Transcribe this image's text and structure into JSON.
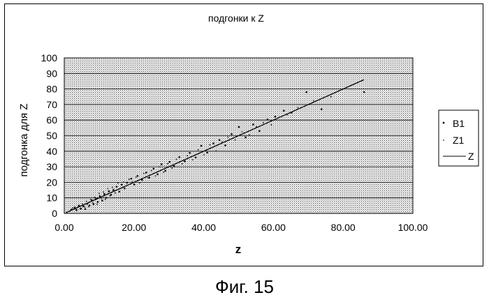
{
  "figure_caption": "Фиг. 15",
  "chart_data": {
    "type": "scatter",
    "title": "подгонки к Z",
    "xlabel": "z",
    "ylabel": "подгонка для Z",
    "xlim": [
      0,
      100
    ],
    "ylim": [
      0,
      100
    ],
    "x_ticks": [
      "0.00",
      "20.00",
      "40.00",
      "60.00",
      "80.00",
      "100.00"
    ],
    "y_ticks": [
      "0",
      "10",
      "20",
      "30",
      "40",
      "50",
      "60",
      "70",
      "80",
      "90",
      "100"
    ],
    "grid": true,
    "legend_position": "right",
    "legend": [
      "B1",
      "Z1",
      "Z"
    ],
    "colors": {
      "plot_background": "#c8c8c8",
      "points": "#000000",
      "line": "#000000"
    },
    "series": [
      {
        "name": "B1",
        "type": "scatter",
        "x": [
          2.1,
          3.0,
          3.5,
          4.2,
          4.8,
          5.5,
          6.0,
          6.6,
          7.2,
          7.9,
          8.4,
          9.0,
          9.6,
          10.2,
          10.9,
          11.5,
          12.0,
          12.8,
          13.4,
          14.1,
          15.0,
          15.8,
          16.5,
          17.3,
          18.0,
          19.2,
          20.1,
          21.0,
          22.3,
          23.5,
          24.4,
          25.6,
          26.8,
          27.9,
          29.0,
          30.2,
          31.5,
          33.0,
          34.6,
          36.0,
          37.7,
          39.3,
          41.0,
          42.8,
          44.5,
          46.2,
          48.0,
          50.1,
          52.0,
          54.2,
          56.0,
          58.3,
          60.5,
          63.0,
          65.2,
          69.5,
          73.8,
          86.0
        ],
        "values": [
          2.5,
          3.8,
          2.2,
          5.0,
          3.1,
          4.6,
          2.8,
          6.2,
          5.1,
          8.5,
          6.0,
          9.2,
          7.4,
          11.0,
          8.3,
          12.5,
          10.1,
          14.2,
          12.0,
          15.1,
          17.2,
          14.0,
          18.5,
          16.1,
          19.8,
          22.4,
          18.6,
          24.1,
          21.5,
          26.3,
          23.0,
          28.8,
          25.2,
          31.6,
          27.4,
          33.1,
          30.4,
          36.2,
          33.5,
          38.9,
          36.0,
          43.5,
          39.1,
          45.0,
          47.2,
          43.8,
          51.0,
          55.6,
          48.9,
          57.2,
          53.0,
          60.4,
          62.2,
          66.0,
          64.8,
          78.0,
          67.0,
          78.0
        ]
      },
      {
        "name": "Z1",
        "type": "scatter",
        "x": [
          2.4,
          3.3,
          4.0,
          4.5,
          5.2,
          5.9,
          6.4,
          7.0,
          7.6,
          8.2,
          8.8,
          9.4,
          10.0,
          10.6,
          11.2,
          11.8,
          12.5,
          13.1,
          13.8,
          14.6,
          15.4,
          16.2,
          17.0,
          17.7,
          18.6,
          19.5,
          20.6,
          21.6,
          22.8,
          24.0,
          25.0,
          26.2,
          27.3,
          28.5,
          29.7,
          30.9,
          32.2,
          33.8,
          35.3,
          36.8,
          38.4,
          40.1,
          41.8,
          43.6,
          45.3,
          47.0,
          49.0,
          51.0,
          53.1,
          55.1,
          57.1,
          59.4,
          61.7,
          64.0,
          67.0,
          71.5,
          76.5
        ],
        "values": [
          3.6,
          2.9,
          4.3,
          3.0,
          6.1,
          4.0,
          7.8,
          4.4,
          9.0,
          6.8,
          10.4,
          5.9,
          12.9,
          9.7,
          13.8,
          9.0,
          15.9,
          11.4,
          16.8,
          13.1,
          19.5,
          16.0,
          20.2,
          17.8,
          21.9,
          20.4,
          23.3,
          19.7,
          25.6,
          22.8,
          27.5,
          24.1,
          30.0,
          26.5,
          32.0,
          29.1,
          34.8,
          31.9,
          37.1,
          34.5,
          41.0,
          37.6,
          44.1,
          40.2,
          46.0,
          49.0,
          47.3,
          52.4,
          50.5,
          55.8,
          58.4,
          57.0,
          61.9,
          63.5,
          68.0,
          72.5,
          75.0
        ]
      },
      {
        "name": "Z",
        "type": "line",
        "x": [
          0.5,
          86.0
        ],
        "values": [
          0.5,
          86.0
        ]
      }
    ]
  }
}
